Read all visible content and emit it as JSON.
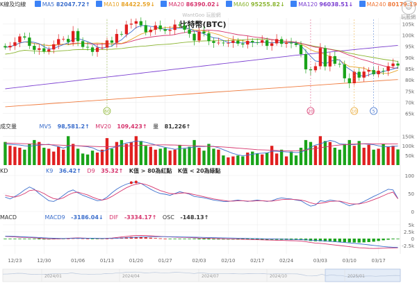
{
  "header": {
    "kline_label": "K線及均線",
    "ma": [
      {
        "label": "MA5",
        "value": "82047.72↑",
        "color": "#3b6ecc",
        "checked": true
      },
      {
        "label": "MA10",
        "value": "84422.59↓",
        "color": "#e8a52b",
        "checked": true
      },
      {
        "label": "MA20",
        "value": "86390.02↓",
        "color": "#d6336c",
        "checked": true
      },
      {
        "label": "MA60",
        "value": "95255.82↓",
        "color": "#8bb531",
        "checked": true
      },
      {
        "label": "MA120",
        "value": "96038.51↓",
        "color": "#7b3fd1",
        "checked": true
      },
      {
        "label": "MA240",
        "value": "80179.19↑",
        "color": "#f07a3c",
        "checked": true
      }
    ],
    "watermark": "WantGoo 玩股網",
    "logo_text": "玩股網",
    "title": "比特幣(BTC)"
  },
  "volume_legend": {
    "title": "成交量",
    "mv5_label": "MV5",
    "mv5_value": "98,581.2↑",
    "mv5_color": "#3b6ecc",
    "mv20_label": "MV20",
    "mv20_value": "109,423↑",
    "mv20_color": "#d6336c",
    "vol_label": "量",
    "vol_value": "81,226↑"
  },
  "kd_legend": {
    "title": "KD",
    "k_label": "K9",
    "k_value": "36.42↑",
    "k_color": "#3b6ecc",
    "d_label": "D9",
    "d_value": "35.32↑",
    "d_color": "#d6336c",
    "note1": "K值 > 80為紅點",
    "note2": "K值 < 20為綠點"
  },
  "macd_legend": {
    "title": "MACD",
    "macd_label": "MACD9",
    "macd_value": "-3186.04↓",
    "macd_color": "#3b6ecc",
    "dif_label": "DIF",
    "dif_value": "-3334.17↑",
    "dif_color": "#d6336c",
    "osc_label": "OSC",
    "osc_value": "-148.13↑"
  },
  "colors": {
    "up": "#e02020",
    "down": "#1aa31a",
    "grid": "#ececec",
    "axis_text": "#666666"
  },
  "chart_data": {
    "type": "candlestick",
    "price_axis": {
      "ticks": [
        "105k",
        "100k",
        "95k",
        "90k",
        "85k",
        "80k",
        "75k",
        "70k",
        "65k"
      ],
      "ylim": [
        63000,
        107000
      ]
    },
    "volume_axis": {
      "ticks": [
        "150k",
        "100k",
        "50k"
      ],
      "ylim": [
        0,
        180000
      ]
    },
    "kd_axis": {
      "ticks": [
        "100",
        "50",
        "0"
      ],
      "ylim": [
        0,
        100
      ]
    },
    "macd_axis": {
      "ticks": [
        "5k",
        "2.5k",
        "0",
        "-2.5k"
      ],
      "ylim": [
        -4500,
        6000
      ]
    },
    "date_labels": [
      "12/23",
      "12/30",
      "01/06",
      "01/13",
      "01/20",
      "01/27",
      "02/03",
      "02/10",
      "02/17",
      "02/24",
      "03/03",
      "03/10",
      "03/17"
    ],
    "overview_labels": [
      "2024/01",
      "2024/04",
      "2024/07",
      "2024/10",
      "2025/01"
    ],
    "event_markers": [
      {
        "label": "60",
        "date_index": 21,
        "color": "#8bb531"
      },
      {
        "label": "20",
        "date_index": 63,
        "color": "#d6336c"
      },
      {
        "label": "10",
        "date_index": 72,
        "color": "#e8a52b"
      },
      {
        "label": "5",
        "date_index": 76,
        "color": "#3b6ecc"
      }
    ],
    "close": [
      94500,
      95200,
      96800,
      99400,
      98900,
      95200,
      93400,
      94100,
      92700,
      93600,
      95900,
      98200,
      98300,
      96900,
      101800,
      97300,
      94700,
      94500,
      92500,
      94400,
      94400,
      97600,
      96600,
      100500,
      100400,
      104700,
      105100,
      106200,
      104400,
      101300,
      102400,
      104300,
      102600,
      101900,
      102300,
      104700,
      104300,
      102400,
      100600,
      97600,
      101600,
      100800,
      97300,
      96500,
      96600,
      96500,
      96500,
      97500,
      96200,
      95800,
      97400,
      96800,
      96600,
      97700,
      95200,
      96300,
      98200,
      96100,
      96600,
      96300,
      95600,
      91500,
      84700,
      84300,
      86100,
      94200,
      86000,
      90600,
      87200,
      86900,
      80700,
      78500,
      83600,
      81000,
      83700,
      84400,
      82500,
      84100,
      84000,
      86100,
      87300,
      86400
    ],
    "open": [
      95100,
      94500,
      95200,
      96800,
      99400,
      98900,
      95200,
      93400,
      94100,
      92700,
      93600,
      95900,
      98200,
      98300,
      96900,
      101800,
      97300,
      94700,
      94500,
      92500,
      94400,
      94400,
      97600,
      96600,
      100500,
      100400,
      104700,
      105100,
      106200,
      104400,
      101300,
      102400,
      104300,
      102600,
      101900,
      102300,
      104700,
      104300,
      102400,
      100600,
      97600,
      101600,
      100800,
      97300,
      96500,
      96600,
      96500,
      96500,
      97500,
      96200,
      95800,
      97400,
      96800,
      96600,
      97700,
      95200,
      96300,
      98200,
      96100,
      96600,
      96300,
      95600,
      91500,
      84700,
      84300,
      86100,
      94200,
      86000,
      90600,
      87200,
      86900,
      80700,
      78500,
      83600,
      81000,
      83700,
      84400,
      82500,
      84100,
      84000,
      86100,
      87300
    ],
    "volume": [
      120000,
      100000,
      95000,
      90000,
      80000,
      110000,
      130000,
      120000,
      90000,
      85000,
      70000,
      95000,
      80000,
      150000,
      110000,
      85000,
      60000,
      55000,
      75000,
      65000,
      80000,
      140000,
      85000,
      120000,
      130000,
      110000,
      120000,
      150000,
      125000,
      100000,
      95000,
      80000,
      85000,
      90000,
      75000,
      80000,
      105000,
      85000,
      95000,
      130000,
      90000,
      75000,
      110000,
      85000,
      80000,
      50000,
      40000,
      45000,
      50000,
      45000,
      65000,
      70000,
      60000,
      55000,
      65000,
      100000,
      60000,
      80000,
      45000,
      70000,
      50000,
      90000,
      130000,
      120000,
      100000,
      150000,
      125000,
      120000,
      90000,
      80000,
      110000,
      130000,
      100000,
      125000,
      90000,
      105000,
      80000,
      85000,
      110000,
      95000,
      100000,
      81226
    ],
    "mv5": [
      110000,
      108000,
      106000,
      104000,
      100000,
      98000,
      101000,
      104000,
      106000,
      108000,
      102000,
      96000,
      88000,
      98000,
      102000,
      100000,
      98000,
      95000,
      90000,
      78000,
      70000,
      80000,
      88000,
      97000,
      106000,
      115000,
      118000,
      125000,
      122000,
      118000,
      112000,
      105000,
      98000,
      92000,
      87000,
      82000,
      85000,
      88000,
      90000,
      94000,
      97000,
      96000,
      98000,
      97000,
      90000,
      80000,
      70000,
      60000,
      54000,
      48000,
      52000,
      56000,
      60000,
      62000,
      63000,
      72000,
      72000,
      70000,
      68000,
      67000,
      65000,
      66000,
      78000,
      92000,
      104000,
      110000,
      120000,
      128000,
      122000,
      110000,
      108000,
      106000,
      106000,
      110000,
      110000,
      108000,
      106000,
      100000,
      96000,
      95000,
      97000,
      98581
    ],
    "mv20": [
      115000,
      114000,
      113000,
      112000,
      111000,
      110000,
      109000,
      108000,
      107000,
      106000,
      105000,
      104000,
      103000,
      102000,
      101000,
      100000,
      99000,
      98000,
      97000,
      96000,
      95000,
      95500,
      96000,
      97000,
      98000,
      99000,
      100000,
      101000,
      102000,
      103000,
      104000,
      104500,
      105000,
      105000,
      104500,
      104000,
      103000,
      102000,
      101000,
      100000,
      99000,
      98000,
      97000,
      96000,
      95000,
      94000,
      92000,
      90000,
      88000,
      86000,
      84000,
      82000,
      80000,
      79000,
      78000,
      77000,
      76000,
      75000,
      74000,
      74000,
      74500,
      76000,
      78000,
      82000,
      86000,
      90000,
      94000,
      98000,
      102000,
      104000,
      106000,
      108000,
      109000,
      110000,
      111000,
      111000,
      110500,
      110000,
      109800,
      109500,
      109400,
      109423
    ],
    "k": [
      40,
      35,
      42,
      50,
      60,
      68,
      62,
      50,
      40,
      30,
      28,
      35,
      45,
      55,
      60,
      52,
      45,
      40,
      35,
      30,
      32,
      40,
      52,
      62,
      70,
      76,
      80,
      82,
      78,
      70,
      62,
      55,
      50,
      48,
      45,
      50,
      55,
      52,
      48,
      42,
      40,
      38,
      35,
      32,
      30,
      28,
      28,
      30,
      32,
      30,
      28,
      30,
      32,
      30,
      28,
      30,
      35,
      38,
      36,
      35,
      32,
      30,
      22,
      15,
      18,
      30,
      28,
      32,
      30,
      28,
      22,
      16,
      20,
      22,
      28,
      35,
      42,
      48,
      55,
      62,
      60,
      36.42
    ],
    "d": [
      45,
      42,
      40,
      44,
      50,
      58,
      60,
      56,
      50,
      42,
      36,
      34,
      38,
      46,
      52,
      54,
      50,
      46,
      40,
      35,
      32,
      35,
      42,
      50,
      58,
      66,
      72,
      76,
      78,
      75,
      70,
      64,
      58,
      54,
      50,
      49,
      51,
      52,
      50,
      47,
      44,
      41,
      38,
      35,
      33,
      31,
      29,
      29,
      30,
      30,
      29,
      29,
      30,
      30,
      29,
      29,
      31,
      33,
      34,
      34,
      33,
      32,
      29,
      24,
      21,
      23,
      25,
      28,
      29,
      29,
      26,
      22,
      21,
      21,
      24,
      28,
      33,
      38,
      44,
      50,
      54,
      35.32
    ],
    "dif": [
      800,
      700,
      600,
      500,
      450,
      400,
      300,
      150,
      0,
      -100,
      -150,
      -100,
      0,
      100,
      200,
      250,
      200,
      150,
      100,
      50,
      0,
      100,
      200,
      400,
      600,
      800,
      1000,
      1100,
      1150,
      1100,
      1000,
      900,
      800,
      700,
      600,
      550,
      500,
      450,
      400,
      300,
      200,
      150,
      100,
      50,
      0,
      -50,
      -100,
      -150,
      -200,
      -250,
      -300,
      -350,
      -400,
      -450,
      -500,
      -550,
      -600,
      -650,
      -700,
      -750,
      -800,
      -900,
      -1100,
      -1400,
      -1600,
      -1700,
      -1900,
      -2100,
      -2300,
      -2500,
      -2700,
      -2900,
      -3100,
      -3300,
      -3400,
      -3500,
      -3550,
      -3500,
      -3450,
      -3400,
      -3350,
      -3334.17
    ],
    "macd": [
      900,
      850,
      800,
      700,
      620,
      550,
      480,
      400,
      300,
      200,
      120,
      80,
      60,
      70,
      90,
      120,
      130,
      130,
      120,
      100,
      80,
      80,
      100,
      150,
      220,
      300,
      400,
      500,
      580,
      640,
      680,
      700,
      700,
      690,
      670,
      640,
      610,
      580,
      550,
      510,
      470,
      430,
      390,
      350,
      310,
      270,
      230,
      190,
      150,
      110,
      70,
      30,
      -10,
      -50,
      -90,
      -130,
      -170,
      -210,
      -250,
      -290,
      -330,
      -380,
      -450,
      -550,
      -650,
      -750,
      -850,
      -980,
      -1100,
      -1250,
      -1400,
      -1550,
      -1700,
      -1870,
      -2050,
      -2250,
      -2450,
      -2650,
      -2850,
      -3000,
      -3100,
      -3186.04
    ]
  }
}
